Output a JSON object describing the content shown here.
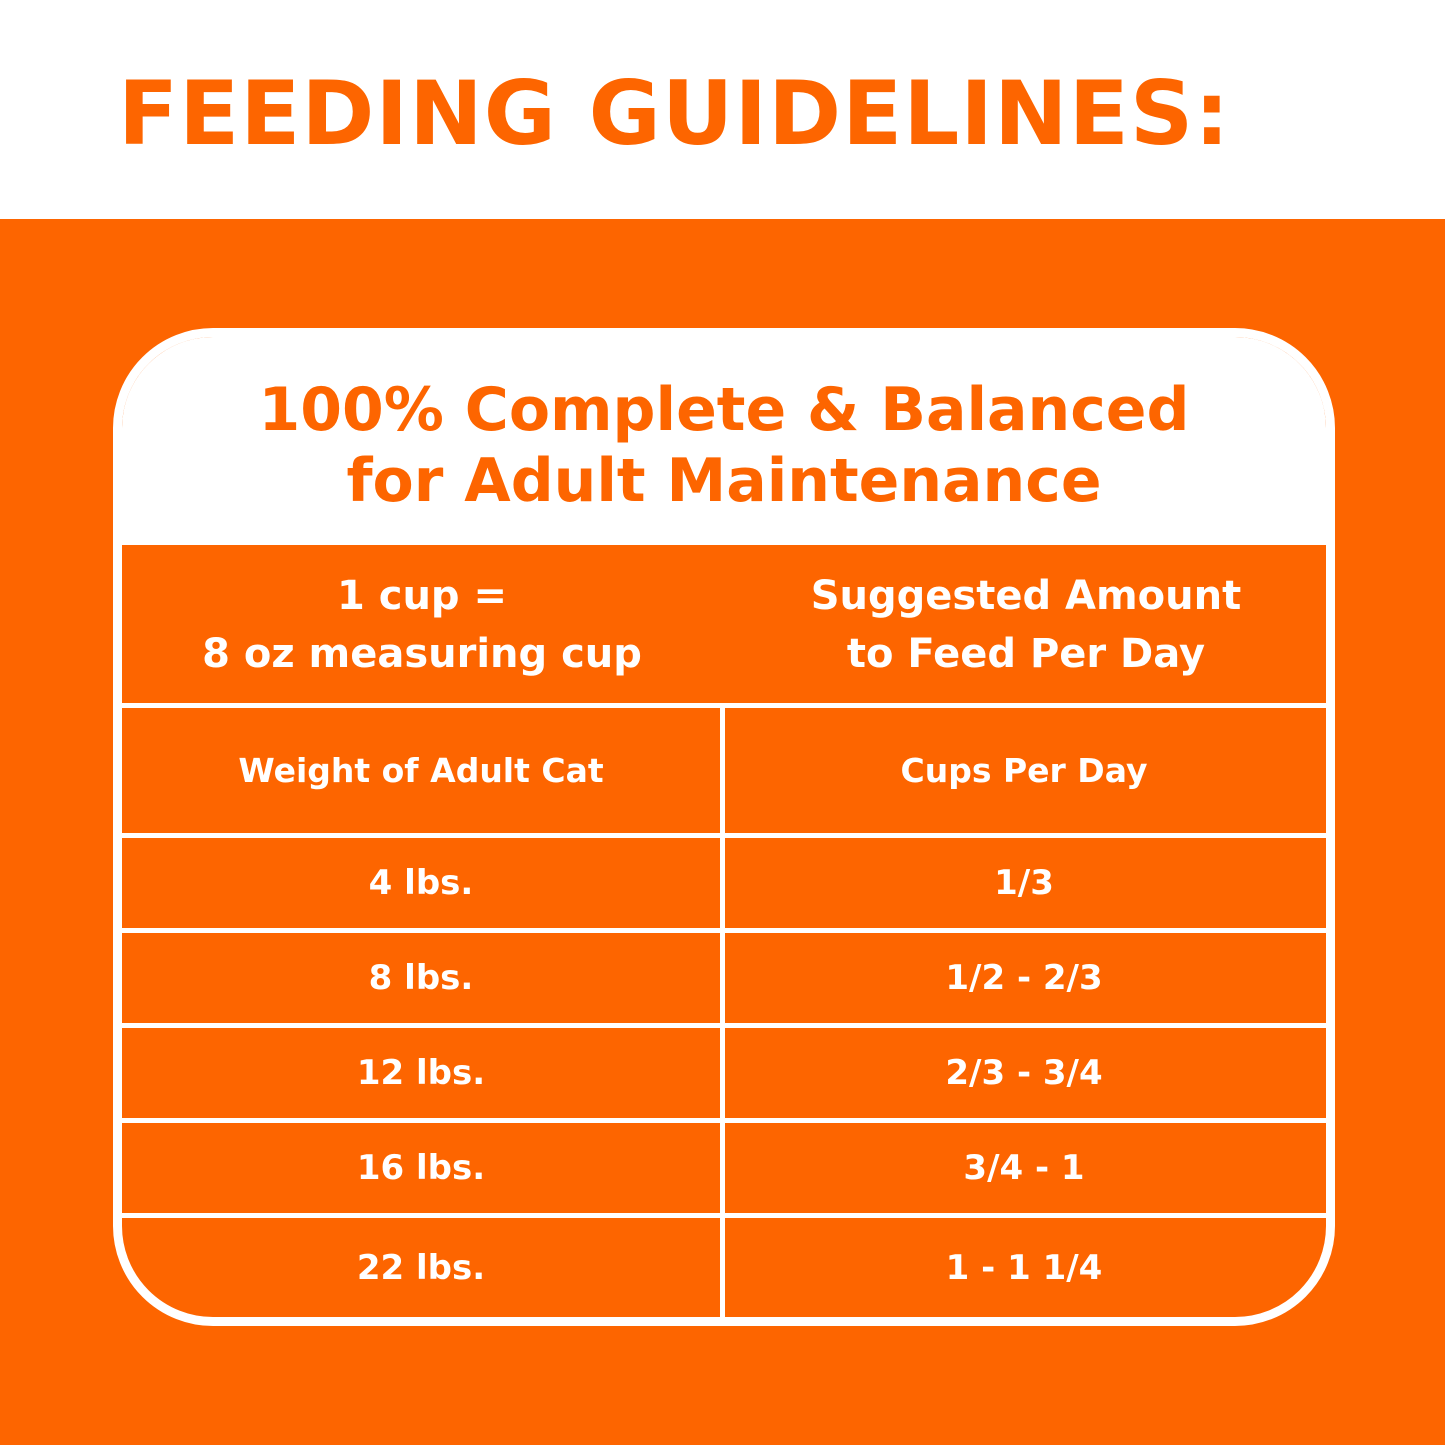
{
  "title": "FEEDING GUIDELINES:",
  "subtitle": {
    "line1": "100% Complete & Balanced",
    "line2": "for Adult Maintenance"
  },
  "header": {
    "left": {
      "line1": "1 cup =",
      "line2": "8 oz measuring cup"
    },
    "right": {
      "line1": "Suggested Amount",
      "line2": "to Feed Per Day"
    }
  },
  "table": {
    "columns": [
      "Weight of Adult Cat",
      "Cups Per Day"
    ],
    "rows": [
      [
        "4 lbs.",
        "1/3"
      ],
      [
        "8 lbs.",
        "1/2 - 2/3"
      ],
      [
        "12 lbs.",
        "2/3 - 3/4"
      ],
      [
        "16 lbs.",
        "3/4 - 1"
      ],
      [
        "22 lbs.",
        "1 - 1 1/4"
      ]
    ]
  },
  "colors": {
    "brand_orange": "#fd6500",
    "white": "#ffffff"
  }
}
